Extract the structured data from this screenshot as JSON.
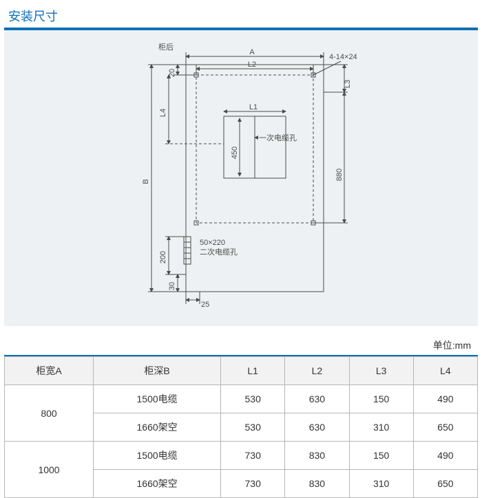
{
  "title": "安装尺寸",
  "unit_label": "单位:mm",
  "diagram": {
    "panel_bg": "#eef1f3",
    "accent": "#0d6fb8",
    "line_color": "#4a4a4a",
    "labels": {
      "rear": "柜后",
      "A": "A",
      "B": "B",
      "L1": "L1",
      "L2": "L2",
      "L3": "L3",
      "L4": "L4",
      "slot": "4-14×24",
      "v450": "450",
      "v880": "880",
      "v20": "20",
      "v30": "30",
      "v25": "25",
      "v200": "200",
      "hole1": "一次电缆孔",
      "hole2_a": "50×220",
      "hole2_b": "二次电缆孔"
    }
  },
  "table": {
    "columns": [
      "柜宽A",
      "柜深B",
      "L1",
      "L2",
      "L3",
      "L4"
    ],
    "groups": [
      {
        "A": "800",
        "rows": [
          {
            "B": "1500电缆",
            "L1": "530",
            "L2": "630",
            "L3": "150",
            "L4": "490"
          },
          {
            "B": "1660架空",
            "L1": "530",
            "L2": "630",
            "L3": "310",
            "L4": "650"
          }
        ]
      },
      {
        "A": "1000",
        "rows": [
          {
            "B": "1500电缆",
            "L1": "730",
            "L2": "830",
            "L3": "150",
            "L4": "490"
          },
          {
            "B": "1660架空",
            "L1": "730",
            "L2": "830",
            "L3": "310",
            "L4": "650"
          }
        ]
      }
    ]
  }
}
